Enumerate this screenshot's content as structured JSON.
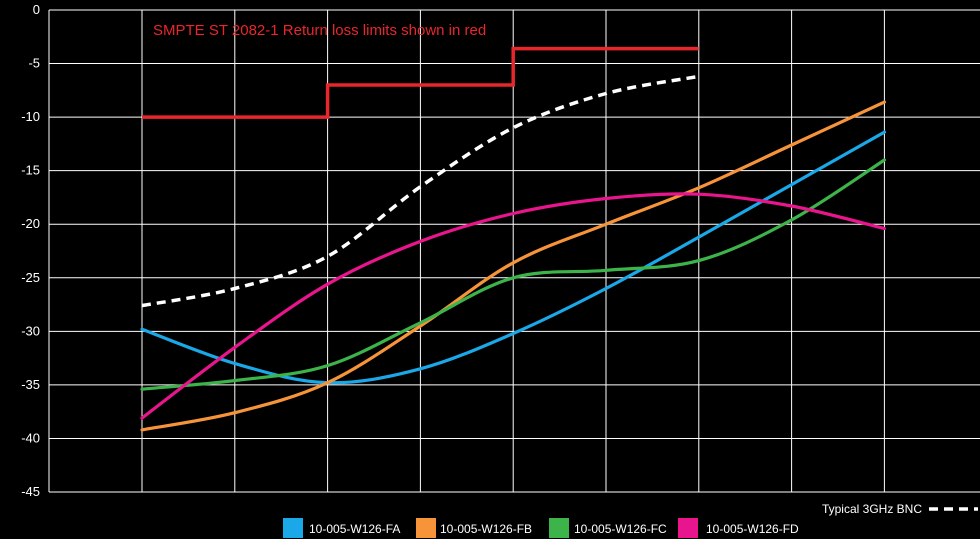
{
  "chart_data": {
    "type": "line",
    "title": "",
    "xlabel": "",
    "ylabel": "",
    "annotation": "SMPTE ST 2082-1 Return loss limits shown in red",
    "x_categories": 8,
    "ylim": [
      -45,
      0
    ],
    "yticks": [
      0,
      -5,
      -10,
      -15,
      -20,
      -25,
      -30,
      -35,
      -40,
      -45
    ],
    "grid": true,
    "legend_position": "bottom",
    "limit_line": {
      "color": "#e8262b",
      "steps": [
        [
          0,
          -10
        ],
        [
          2,
          -10
        ],
        [
          2,
          -7
        ],
        [
          4,
          -7
        ],
        [
          4,
          -3.6
        ],
        [
          6,
          -3.6
        ]
      ]
    },
    "reference_series": {
      "name": "Typical 3GHz BNC",
      "color": "#ffffff",
      "x": [
        0,
        1,
        2,
        3,
        4,
        5,
        6
      ],
      "values": [
        -27.6,
        -26.0,
        -23.0,
        -16.5,
        -11.0,
        -7.8,
        -6.2
      ]
    },
    "series": [
      {
        "name": "10-005-W126-FA",
        "color": "#1aa8e8",
        "x": [
          0,
          1,
          2,
          3,
          4,
          5,
          6,
          7,
          8
        ],
        "values": [
          -29.8,
          -33.0,
          -34.8,
          -33.5,
          -30.2,
          -26.0,
          -21.2,
          -16.3,
          -11.4
        ]
      },
      {
        "name": "10-005-W126-FB",
        "color": "#f7943a",
        "x": [
          0,
          1,
          2,
          3,
          4,
          5,
          6,
          7,
          8
        ],
        "values": [
          -39.2,
          -37.6,
          -34.8,
          -29.5,
          -23.6,
          -20.0,
          -16.6,
          -12.6,
          -8.6
        ]
      },
      {
        "name": "10-005-W126-FC",
        "color": "#3cb44a",
        "x": [
          0,
          1,
          2,
          3,
          4,
          5,
          6,
          7,
          8
        ],
        "values": [
          -35.4,
          -34.6,
          -33.2,
          -29.2,
          -25.0,
          -24.3,
          -23.4,
          -19.6,
          -14.0
        ]
      },
      {
        "name": "10-005-W126-FD",
        "color": "#e8158d",
        "x": [
          0,
          1,
          2,
          3,
          4,
          5,
          6,
          7,
          8
        ],
        "values": [
          -38.1,
          -31.5,
          -25.6,
          -21.6,
          -19.0,
          -17.6,
          -17.2,
          -18.3,
          -20.4
        ]
      }
    ]
  }
}
